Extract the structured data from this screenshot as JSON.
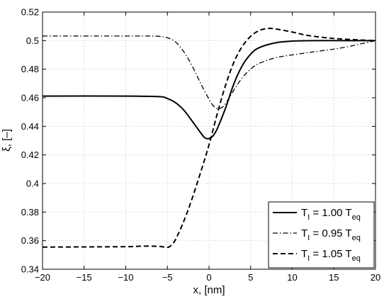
{
  "chart_data": {
    "type": "line",
    "title": "",
    "xlabel": "x, [nm]",
    "ylabel": "ξ, [–]",
    "xlim": [
      -20,
      20
    ],
    "ylim": [
      0.34,
      0.52
    ],
    "xticks": [
      -20,
      -15,
      -10,
      -5,
      0,
      5,
      10,
      15,
      20
    ],
    "yticks": [
      0.34,
      0.36,
      0.38,
      0.4,
      0.42,
      0.44,
      0.46,
      0.48,
      0.5,
      0.52
    ],
    "xtick_labels": [
      "−20",
      "−15",
      "−10",
      "−5",
      "0",
      "5",
      "10",
      "15",
      "20"
    ],
    "ytick_labels": [
      "0.34",
      "0.36",
      "0.38",
      "0.4",
      "0.42",
      "0.44",
      "0.46",
      "0.48",
      "0.5",
      "0.52"
    ],
    "grid": true,
    "legend_position": "bottom-right",
    "series": [
      {
        "legend": {
          "pre": "T",
          "sub1": "I",
          "mid": " = 1.00 T",
          "sub2": "eq"
        },
        "style": "solid",
        "color": "#000000",
        "x": [
          -20,
          -10,
          -6,
          -5,
          -4,
          -3,
          -2,
          -1,
          -0.5,
          0,
          0.5,
          1,
          2,
          3,
          4,
          5,
          6,
          8,
          10,
          13,
          16,
          20
        ],
        "y": [
          0.4612,
          0.4612,
          0.4608,
          0.4595,
          0.4565,
          0.4512,
          0.4435,
          0.4355,
          0.432,
          0.4315,
          0.4335,
          0.4385,
          0.453,
          0.47,
          0.4825,
          0.4905,
          0.495,
          0.4985,
          0.4997,
          0.5,
          0.5,
          0.5
        ]
      },
      {
        "legend": {
          "pre": "T",
          "sub1": "I",
          "mid": " = 0.95 T",
          "sub2": "eq"
        },
        "style": "dashdot",
        "color": "#000000",
        "x": [
          -20,
          -8,
          -6,
          -5,
          -4,
          -3,
          -2,
          -1,
          0,
          0.5,
          1,
          1.5,
          2,
          3,
          4,
          5,
          6,
          8,
          10,
          13,
          16,
          20
        ],
        "y": [
          0.5032,
          0.5032,
          0.503,
          0.502,
          0.499,
          0.492,
          0.482,
          0.47,
          0.459,
          0.4545,
          0.4525,
          0.453,
          0.456,
          0.4655,
          0.474,
          0.48,
          0.484,
          0.488,
          0.49,
          0.4925,
          0.495,
          0.5
        ]
      },
      {
        "legend": {
          "pre": "T",
          "sub1": "I",
          "mid": " = 1.05 T",
          "sub2": "eq"
        },
        "style": "dashed",
        "color": "#000000",
        "x": [
          -20,
          -10,
          -8,
          -6,
          -5,
          -4.5,
          -4,
          -3,
          -2,
          -1,
          0,
          1,
          2,
          3,
          4,
          5,
          6,
          7,
          8,
          10,
          12,
          15,
          18,
          20
        ],
        "y": [
          0.3555,
          0.3558,
          0.3562,
          0.356,
          0.3553,
          0.357,
          0.361,
          0.374,
          0.39,
          0.408,
          0.427,
          0.449,
          0.469,
          0.485,
          0.496,
          0.503,
          0.507,
          0.5085,
          0.5082,
          0.506,
          0.5035,
          0.5015,
          0.5005,
          0.5
        ]
      }
    ]
  }
}
